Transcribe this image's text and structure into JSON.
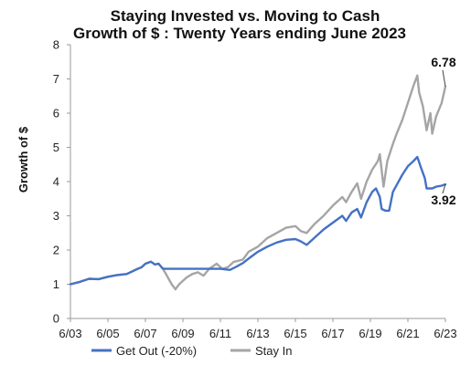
{
  "chart_data": {
    "type": "line",
    "title": "Staying Invested vs. Moving to Cash",
    "subtitle": "Growth of $ : Twenty Years ending June 2023",
    "ylabel": "Growth of $",
    "xlabel": "",
    "xlim": [
      2003.5,
      2023.5
    ],
    "ylim": [
      0,
      8
    ],
    "y_ticks": [
      "0",
      "1",
      "2",
      "3",
      "4",
      "5",
      "6",
      "7",
      "8"
    ],
    "x_ticks": [
      {
        "label": "6/03",
        "x": 2003.5
      },
      {
        "label": "6/05",
        "x": 2005.5
      },
      {
        "label": "6/07",
        "x": 2007.5
      },
      {
        "label": "6/09",
        "x": 2009.5
      },
      {
        "label": "6/11",
        "x": 2011.5
      },
      {
        "label": "6/13",
        "x": 2013.5
      },
      {
        "label": "6/15",
        "x": 2015.5
      },
      {
        "label": "6/17",
        "x": 2017.5
      },
      {
        "label": "6/19",
        "x": 2019.5
      },
      {
        "label": "6/21",
        "x": 2021.5
      },
      {
        "label": "6/23",
        "x": 2023.5
      }
    ],
    "grid": false,
    "legend_position": "bottom",
    "series": [
      {
        "name": "Get Out (-20%)",
        "color": "#4472C4",
        "end_label": "3.92",
        "points": [
          [
            2003.5,
            1.0
          ],
          [
            2004.0,
            1.07
          ],
          [
            2004.5,
            1.16
          ],
          [
            2005.0,
            1.15
          ],
          [
            2005.5,
            1.22
          ],
          [
            2006.0,
            1.27
          ],
          [
            2006.5,
            1.3
          ],
          [
            2007.0,
            1.43
          ],
          [
            2007.3,
            1.5
          ],
          [
            2007.5,
            1.6
          ],
          [
            2007.8,
            1.66
          ],
          [
            2008.0,
            1.58
          ],
          [
            2008.2,
            1.6
          ],
          [
            2008.4,
            1.47
          ],
          [
            2008.5,
            1.45
          ],
          [
            2009.0,
            1.45
          ],
          [
            2010.0,
            1.45
          ],
          [
            2011.0,
            1.45
          ],
          [
            2011.5,
            1.45
          ],
          [
            2012.0,
            1.42
          ],
          [
            2012.3,
            1.5
          ],
          [
            2012.7,
            1.62
          ],
          [
            2013.0,
            1.75
          ],
          [
            2013.5,
            1.95
          ],
          [
            2014.0,
            2.1
          ],
          [
            2014.5,
            2.22
          ],
          [
            2015.0,
            2.3
          ],
          [
            2015.5,
            2.32
          ],
          [
            2015.8,
            2.25
          ],
          [
            2016.1,
            2.15
          ],
          [
            2016.5,
            2.35
          ],
          [
            2017.0,
            2.6
          ],
          [
            2017.5,
            2.8
          ],
          [
            2018.0,
            3.0
          ],
          [
            2018.2,
            2.85
          ],
          [
            2018.5,
            3.1
          ],
          [
            2018.8,
            3.2
          ],
          [
            2019.0,
            2.95
          ],
          [
            2019.3,
            3.4
          ],
          [
            2019.6,
            3.7
          ],
          [
            2019.8,
            3.8
          ],
          [
            2020.0,
            3.55
          ],
          [
            2020.1,
            3.2
          ],
          [
            2020.3,
            3.15
          ],
          [
            2020.5,
            3.15
          ],
          [
            2020.7,
            3.7
          ],
          [
            2020.9,
            3.9
          ],
          [
            2021.2,
            4.2
          ],
          [
            2021.5,
            4.45
          ],
          [
            2021.8,
            4.6
          ],
          [
            2022.0,
            4.72
          ],
          [
            2022.2,
            4.4
          ],
          [
            2022.4,
            4.1
          ],
          [
            2022.5,
            3.8
          ],
          [
            2022.8,
            3.8
          ],
          [
            2023.0,
            3.85
          ],
          [
            2023.3,
            3.88
          ],
          [
            2023.5,
            3.92
          ]
        ]
      },
      {
        "name": "Stay In",
        "color": "#A5A5A5",
        "end_label": "6.78",
        "points": [
          [
            2003.5,
            1.0
          ],
          [
            2004.0,
            1.07
          ],
          [
            2004.5,
            1.16
          ],
          [
            2005.0,
            1.15
          ],
          [
            2005.5,
            1.22
          ],
          [
            2006.0,
            1.27
          ],
          [
            2006.5,
            1.3
          ],
          [
            2007.0,
            1.43
          ],
          [
            2007.3,
            1.5
          ],
          [
            2007.5,
            1.6
          ],
          [
            2007.8,
            1.66
          ],
          [
            2008.0,
            1.58
          ],
          [
            2008.2,
            1.6
          ],
          [
            2008.4,
            1.47
          ],
          [
            2008.6,
            1.3
          ],
          [
            2008.9,
            1.0
          ],
          [
            2009.1,
            0.85
          ],
          [
            2009.3,
            1.0
          ],
          [
            2009.7,
            1.2
          ],
          [
            2010.0,
            1.3
          ],
          [
            2010.3,
            1.35
          ],
          [
            2010.6,
            1.25
          ],
          [
            2010.9,
            1.45
          ],
          [
            2011.3,
            1.6
          ],
          [
            2011.6,
            1.45
          ],
          [
            2011.9,
            1.5
          ],
          [
            2012.2,
            1.65
          ],
          [
            2012.7,
            1.72
          ],
          [
            2013.0,
            1.95
          ],
          [
            2013.5,
            2.1
          ],
          [
            2014.0,
            2.35
          ],
          [
            2014.5,
            2.5
          ],
          [
            2015.0,
            2.65
          ],
          [
            2015.5,
            2.7
          ],
          [
            2015.8,
            2.55
          ],
          [
            2016.1,
            2.5
          ],
          [
            2016.5,
            2.75
          ],
          [
            2017.0,
            3.0
          ],
          [
            2017.5,
            3.3
          ],
          [
            2018.0,
            3.55
          ],
          [
            2018.2,
            3.4
          ],
          [
            2018.5,
            3.7
          ],
          [
            2018.8,
            3.95
          ],
          [
            2019.0,
            3.5
          ],
          [
            2019.3,
            4.0
          ],
          [
            2019.6,
            4.35
          ],
          [
            2019.9,
            4.6
          ],
          [
            2020.0,
            4.8
          ],
          [
            2020.2,
            3.85
          ],
          [
            2020.4,
            4.6
          ],
          [
            2020.7,
            5.1
          ],
          [
            2020.9,
            5.4
          ],
          [
            2021.2,
            5.8
          ],
          [
            2021.5,
            6.3
          ],
          [
            2021.8,
            6.8
          ],
          [
            2022.0,
            7.1
          ],
          [
            2022.1,
            6.6
          ],
          [
            2022.3,
            6.2
          ],
          [
            2022.5,
            5.5
          ],
          [
            2022.7,
            6.0
          ],
          [
            2022.8,
            5.4
          ],
          [
            2023.0,
            5.9
          ],
          [
            2023.3,
            6.3
          ],
          [
            2023.5,
            6.78
          ]
        ]
      }
    ]
  }
}
